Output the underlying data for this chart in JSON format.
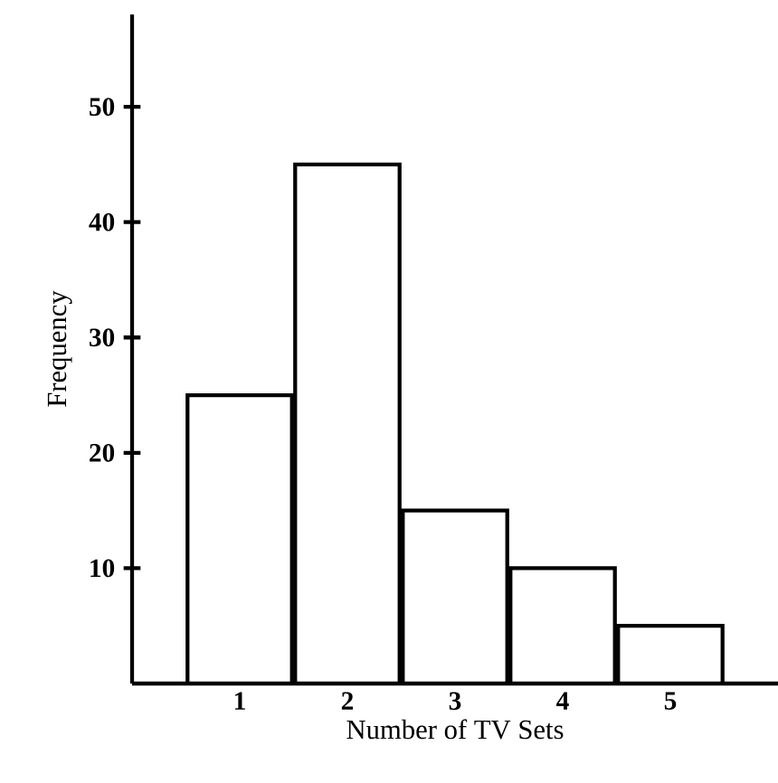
{
  "chart_data": {
    "type": "histogram",
    "xlabel": "Number of TV Sets",
    "ylabel": "Frequency",
    "bins": [
      0.5,
      1.5,
      2.5,
      3.5,
      4.5,
      5.5
    ],
    "values": [
      25,
      45,
      15,
      10,
      5
    ],
    "color": "#ffffff",
    "xlim": [
      0,
      6
    ],
    "ylim": [
      0,
      58
    ],
    "xticks": [
      1,
      2,
      3,
      4,
      5
    ],
    "yticks": [
      10,
      20,
      30,
      40,
      50
    ],
    "grid": false
  }
}
